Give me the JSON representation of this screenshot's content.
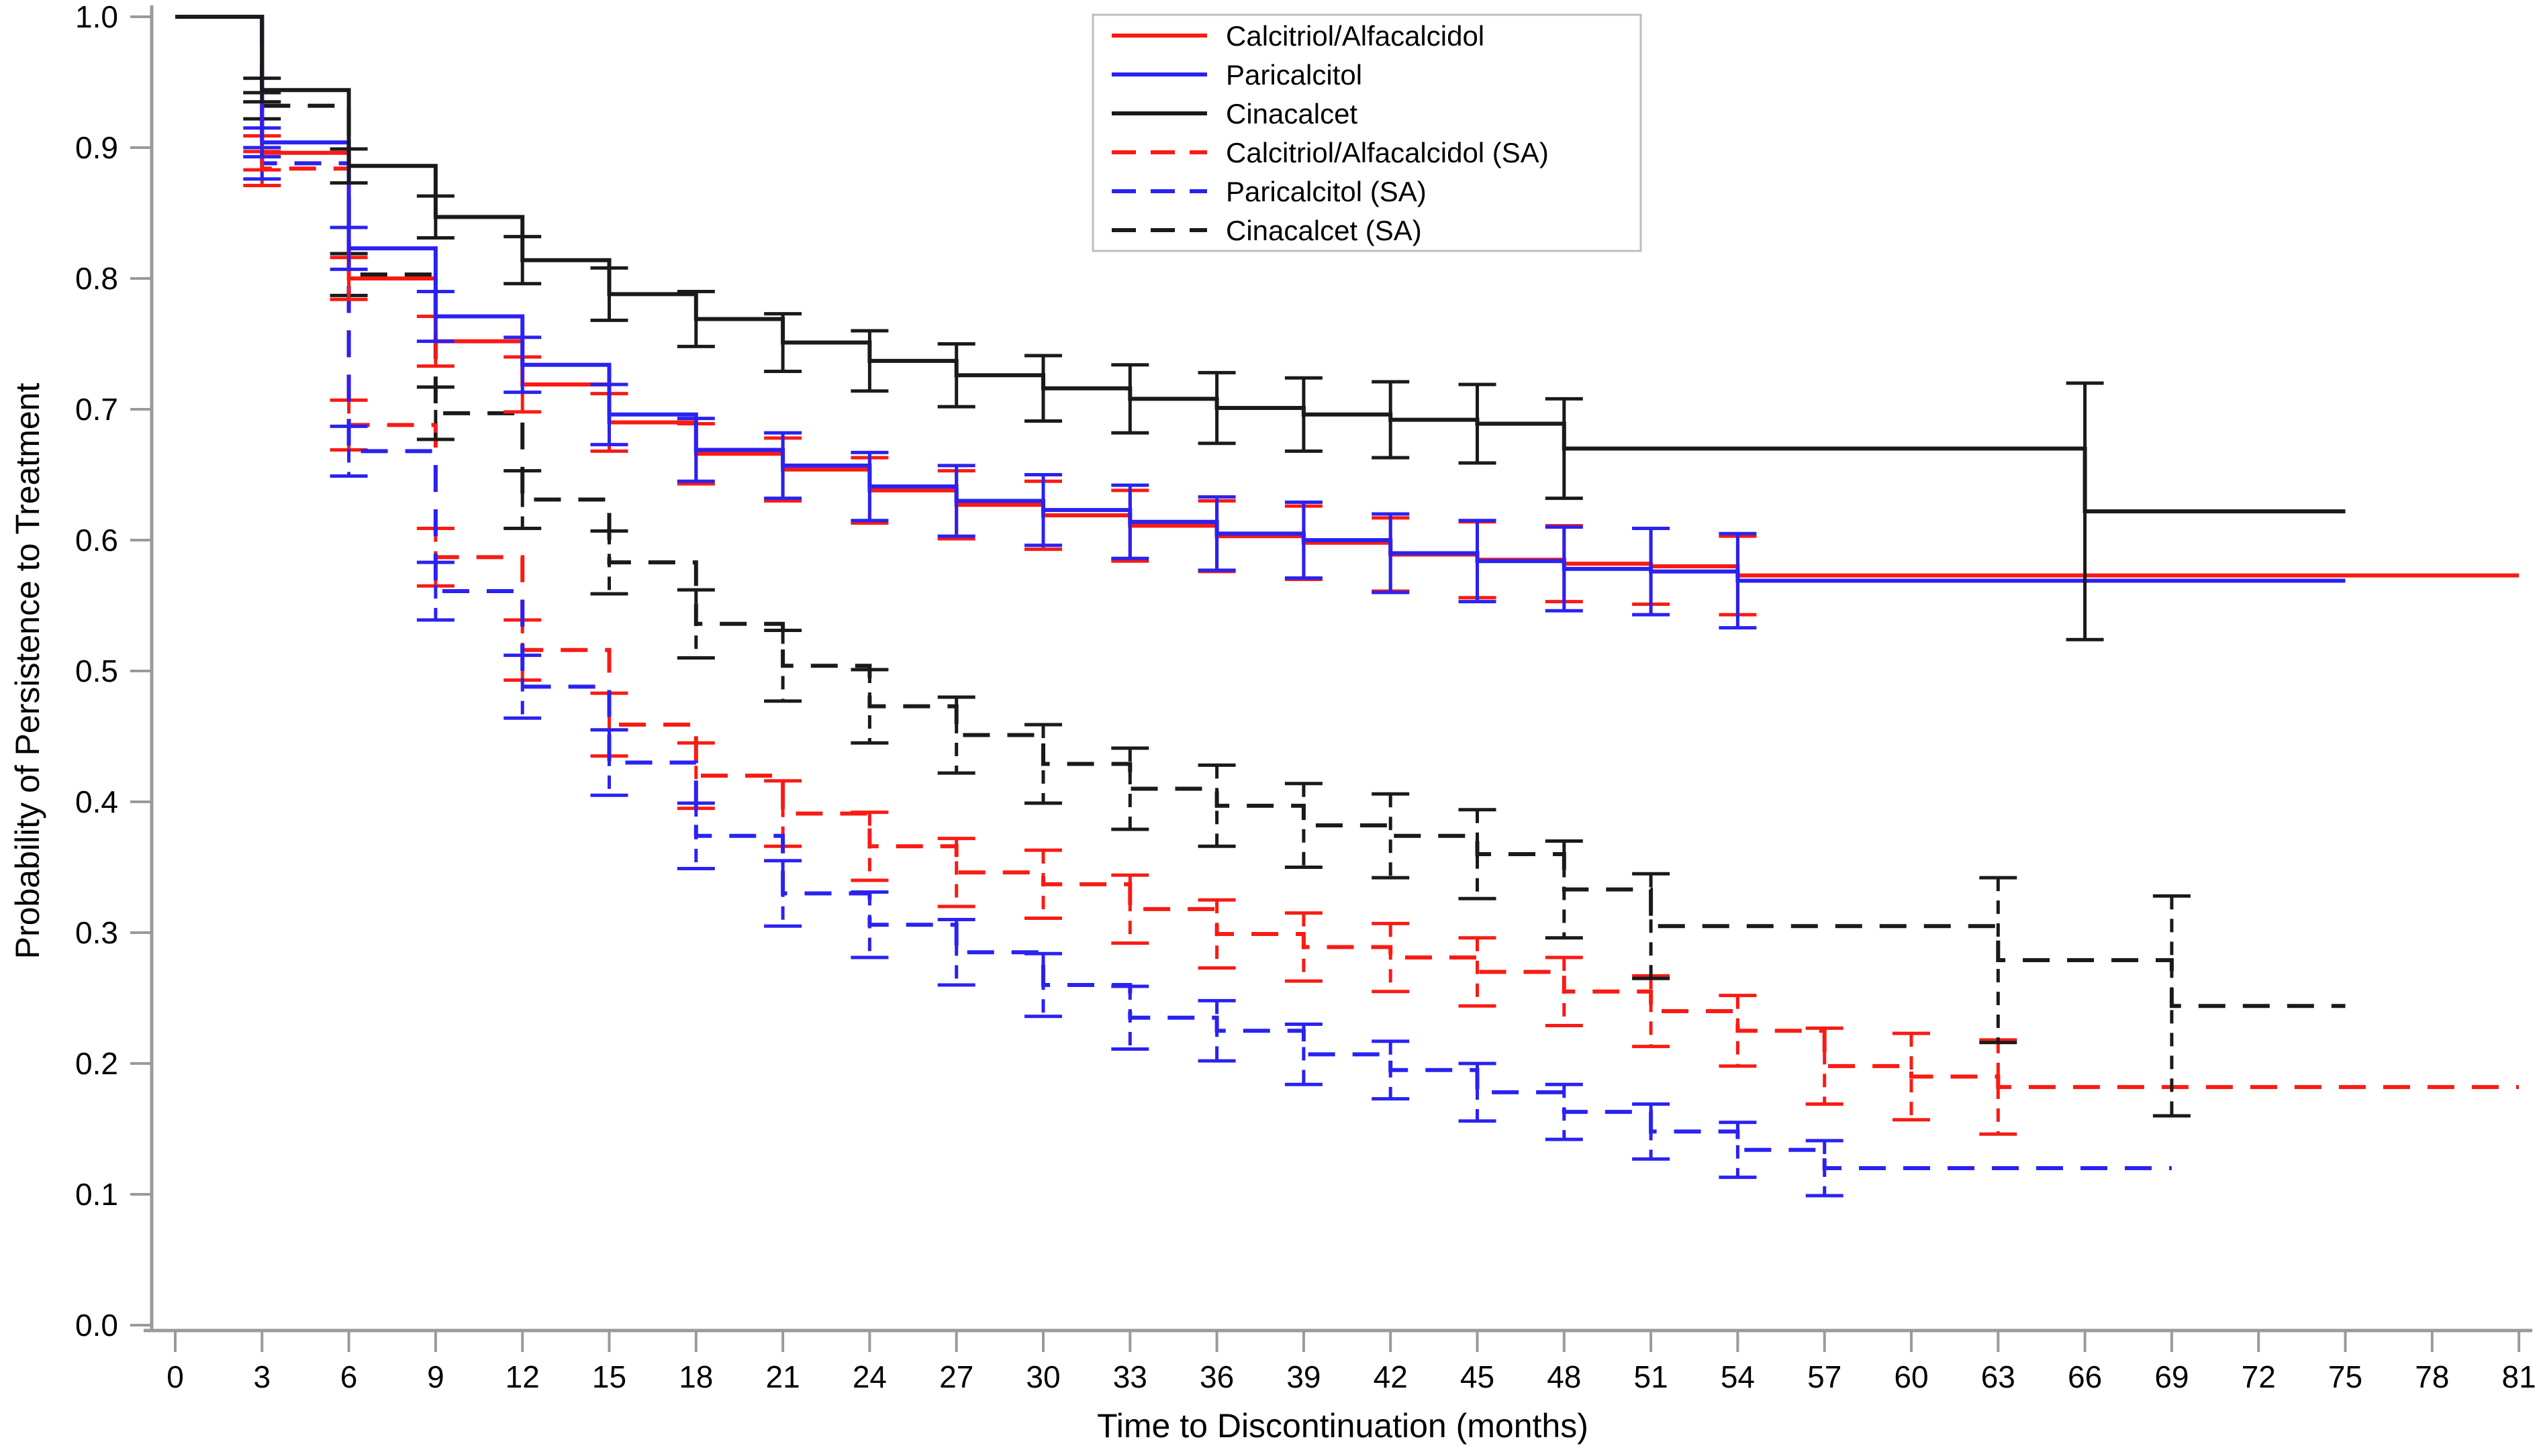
{
  "figure": {
    "kind": "kaplan-meier-survival-plot",
    "background_color": "#ffffff",
    "axis_line_color": "#9a9a9a",
    "text_color": "#000000",
    "legend_border_color": "#bdbdbd"
  },
  "chart_data": {
    "type": "line",
    "subtype": "step-post-kaplan-meier-with-error-bars",
    "title": "",
    "xlabel": "Time to Discontinuation (months)",
    "ylabel": "Probability of Persistence to Treatment",
    "xlim": [
      0,
      81
    ],
    "ylim": [
      0.0,
      1.0
    ],
    "grid": false,
    "legend_position": "top-right",
    "x_ticks": [
      0,
      3,
      6,
      9,
      12,
      15,
      18,
      21,
      24,
      27,
      30,
      33,
      36,
      39,
      42,
      45,
      48,
      51,
      54,
      57,
      60,
      63,
      66,
      69,
      72,
      75,
      78,
      81
    ],
    "x_tick_labels": [
      "0",
      "3",
      "6",
      "9",
      "12",
      "15",
      "18",
      "21",
      "24",
      "27",
      "30",
      "33",
      "36",
      "39",
      "42",
      "45",
      "48",
      "51",
      "54",
      "57",
      "60",
      "63",
      "66",
      "69",
      "72",
      "75",
      "78",
      "81"
    ],
    "y_ticks": [
      0.0,
      0.1,
      0.2,
      0.3,
      0.4,
      0.5,
      0.6,
      0.7,
      0.8,
      0.9,
      1.0
    ],
    "y_tick_labels": [
      "0.0",
      "0.1",
      "0.2",
      "0.3",
      "0.4",
      "0.5",
      "0.6",
      "0.7",
      "0.8",
      "0.9",
      "1.0"
    ],
    "series": [
      {
        "name": "Calcitriol/Alfacalcidol",
        "color": "#f81b14",
        "dash": "solid",
        "start_value": 1.0,
        "end_month": 81,
        "points": [
          {
            "m": 3,
            "v": 0.896,
            "lo": 0.883,
            "hi": 0.909
          },
          {
            "m": 6,
            "v": 0.8,
            "lo": 0.784,
            "hi": 0.816
          },
          {
            "m": 9,
            "v": 0.752,
            "lo": 0.733,
            "hi": 0.771
          },
          {
            "m": 12,
            "v": 0.719,
            "lo": 0.698,
            "hi": 0.74
          },
          {
            "m": 15,
            "v": 0.69,
            "lo": 0.668,
            "hi": 0.712
          },
          {
            "m": 18,
            "v": 0.666,
            "lo": 0.643,
            "hi": 0.689
          },
          {
            "m": 21,
            "v": 0.654,
            "lo": 0.63,
            "hi": 0.678
          },
          {
            "m": 24,
            "v": 0.638,
            "lo": 0.613,
            "hi": 0.663
          },
          {
            "m": 27,
            "v": 0.627,
            "lo": 0.601,
            "hi": 0.653
          },
          {
            "m": 30,
            "v": 0.619,
            "lo": 0.593,
            "hi": 0.645
          },
          {
            "m": 33,
            "v": 0.611,
            "lo": 0.584,
            "hi": 0.638
          },
          {
            "m": 36,
            "v": 0.603,
            "lo": 0.576,
            "hi": 0.63
          },
          {
            "m": 39,
            "v": 0.598,
            "lo": 0.57,
            "hi": 0.626
          },
          {
            "m": 42,
            "v": 0.589,
            "lo": 0.561,
            "hi": 0.617
          },
          {
            "m": 45,
            "v": 0.585,
            "lo": 0.556,
            "hi": 0.614
          },
          {
            "m": 48,
            "v": 0.582,
            "lo": 0.553,
            "hi": 0.611
          },
          {
            "m": 51,
            "v": 0.58,
            "lo": 0.551,
            "hi": 0.609
          },
          {
            "m": 54,
            "v": 0.573,
            "lo": 0.543,
            "hi": 0.603
          }
        ]
      },
      {
        "name": "Paricalcitol",
        "color": "#2a22f0",
        "dash": "solid",
        "start_value": 1.0,
        "end_month": 75,
        "points": [
          {
            "m": 3,
            "v": 0.904,
            "lo": 0.893,
            "hi": 0.915
          },
          {
            "m": 6,
            "v": 0.823,
            "lo": 0.807,
            "hi": 0.839
          },
          {
            "m": 9,
            "v": 0.771,
            "lo": 0.752,
            "hi": 0.79
          },
          {
            "m": 12,
            "v": 0.734,
            "lo": 0.713,
            "hi": 0.755
          },
          {
            "m": 15,
            "v": 0.696,
            "lo": 0.673,
            "hi": 0.719
          },
          {
            "m": 18,
            "v": 0.669,
            "lo": 0.645,
            "hi": 0.693
          },
          {
            "m": 21,
            "v": 0.657,
            "lo": 0.632,
            "hi": 0.682
          },
          {
            "m": 24,
            "v": 0.641,
            "lo": 0.615,
            "hi": 0.667
          },
          {
            "m": 27,
            "v": 0.63,
            "lo": 0.603,
            "hi": 0.657
          },
          {
            "m": 30,
            "v": 0.623,
            "lo": 0.596,
            "hi": 0.65
          },
          {
            "m": 33,
            "v": 0.614,
            "lo": 0.586,
            "hi": 0.642
          },
          {
            "m": 36,
            "v": 0.605,
            "lo": 0.577,
            "hi": 0.633
          },
          {
            "m": 39,
            "v": 0.6,
            "lo": 0.571,
            "hi": 0.629
          },
          {
            "m": 42,
            "v": 0.59,
            "lo": 0.56,
            "hi": 0.62
          },
          {
            "m": 45,
            "v": 0.584,
            "lo": 0.553,
            "hi": 0.615
          },
          {
            "m": 48,
            "v": 0.578,
            "lo": 0.546,
            "hi": 0.61
          },
          {
            "m": 51,
            "v": 0.576,
            "lo": 0.543,
            "hi": 0.609
          },
          {
            "m": 54,
            "v": 0.569,
            "lo": 0.533,
            "hi": 0.605
          }
        ]
      },
      {
        "name": "Cinacalcet",
        "color": "#1a1a1a",
        "dash": "solid",
        "start_value": 1.0,
        "end_month": 75,
        "points": [
          {
            "m": 3,
            "v": 0.944,
            "lo": 0.935,
            "hi": 0.953
          },
          {
            "m": 6,
            "v": 0.886,
            "lo": 0.873,
            "hi": 0.899
          },
          {
            "m": 9,
            "v": 0.847,
            "lo": 0.831,
            "hi": 0.863
          },
          {
            "m": 12,
            "v": 0.814,
            "lo": 0.796,
            "hi": 0.832
          },
          {
            "m": 15,
            "v": 0.788,
            "lo": 0.768,
            "hi": 0.808
          },
          {
            "m": 18,
            "v": 0.769,
            "lo": 0.748,
            "hi": 0.79
          },
          {
            "m": 21,
            "v": 0.751,
            "lo": 0.729,
            "hi": 0.773
          },
          {
            "m": 24,
            "v": 0.737,
            "lo": 0.714,
            "hi": 0.76
          },
          {
            "m": 27,
            "v": 0.726,
            "lo": 0.702,
            "hi": 0.75
          },
          {
            "m": 30,
            "v": 0.716,
            "lo": 0.691,
            "hi": 0.741
          },
          {
            "m": 33,
            "v": 0.708,
            "lo": 0.682,
            "hi": 0.734
          },
          {
            "m": 36,
            "v": 0.701,
            "lo": 0.674,
            "hi": 0.728
          },
          {
            "m": 39,
            "v": 0.696,
            "lo": 0.668,
            "hi": 0.724
          },
          {
            "m": 42,
            "v": 0.692,
            "lo": 0.663,
            "hi": 0.721
          },
          {
            "m": 45,
            "v": 0.689,
            "lo": 0.659,
            "hi": 0.719
          },
          {
            "m": 48,
            "v": 0.67,
            "lo": 0.632,
            "hi": 0.708
          },
          {
            "m": 66,
            "v": 0.622,
            "lo": 0.524,
            "hi": 0.72
          }
        ]
      },
      {
        "name": "Calcitriol/Alfacalcidol (SA)",
        "color": "#f81b14",
        "dash": "dashed",
        "start_value": 1.0,
        "end_month": 81,
        "points": [
          {
            "m": 3,
            "v": 0.884,
            "lo": 0.871,
            "hi": 0.897
          },
          {
            "m": 6,
            "v": 0.688,
            "lo": 0.669,
            "hi": 0.707
          },
          {
            "m": 9,
            "v": 0.587,
            "lo": 0.565,
            "hi": 0.609
          },
          {
            "m": 12,
            "v": 0.516,
            "lo": 0.493,
            "hi": 0.539
          },
          {
            "m": 15,
            "v": 0.459,
            "lo": 0.435,
            "hi": 0.483
          },
          {
            "m": 18,
            "v": 0.42,
            "lo": 0.395,
            "hi": 0.445
          },
          {
            "m": 21,
            "v": 0.391,
            "lo": 0.366,
            "hi": 0.416
          },
          {
            "m": 24,
            "v": 0.366,
            "lo": 0.34,
            "hi": 0.392
          },
          {
            "m": 27,
            "v": 0.346,
            "lo": 0.32,
            "hi": 0.372
          },
          {
            "m": 30,
            "v": 0.337,
            "lo": 0.311,
            "hi": 0.363
          },
          {
            "m": 33,
            "v": 0.318,
            "lo": 0.292,
            "hi": 0.344
          },
          {
            "m": 36,
            "v": 0.299,
            "lo": 0.273,
            "hi": 0.325
          },
          {
            "m": 39,
            "v": 0.289,
            "lo": 0.263,
            "hi": 0.315
          },
          {
            "m": 42,
            "v": 0.281,
            "lo": 0.255,
            "hi": 0.307
          },
          {
            "m": 45,
            "v": 0.27,
            "lo": 0.244,
            "hi": 0.296
          },
          {
            "m": 48,
            "v": 0.255,
            "lo": 0.229,
            "hi": 0.281
          },
          {
            "m": 51,
            "v": 0.24,
            "lo": 0.213,
            "hi": 0.267
          },
          {
            "m": 54,
            "v": 0.225,
            "lo": 0.198,
            "hi": 0.252
          },
          {
            "m": 57,
            "v": 0.198,
            "lo": 0.169,
            "hi": 0.227
          },
          {
            "m": 60,
            "v": 0.19,
            "lo": 0.157,
            "hi": 0.223
          },
          {
            "m": 63,
            "v": 0.182,
            "lo": 0.146,
            "hi": 0.218
          }
        ]
      },
      {
        "name": "Paricalcitol (SA)",
        "color": "#2a22f0",
        "dash": "dashed",
        "start_value": 1.0,
        "end_month": 69,
        "points": [
          {
            "m": 3,
            "v": 0.888,
            "lo": 0.876,
            "hi": 0.9
          },
          {
            "m": 6,
            "v": 0.668,
            "lo": 0.649,
            "hi": 0.687
          },
          {
            "m": 9,
            "v": 0.561,
            "lo": 0.539,
            "hi": 0.583
          },
          {
            "m": 12,
            "v": 0.488,
            "lo": 0.464,
            "hi": 0.512
          },
          {
            "m": 15,
            "v": 0.43,
            "lo": 0.405,
            "hi": 0.455
          },
          {
            "m": 18,
            "v": 0.374,
            "lo": 0.349,
            "hi": 0.399
          },
          {
            "m": 21,
            "v": 0.33,
            "lo": 0.305,
            "hi": 0.355
          },
          {
            "m": 24,
            "v": 0.306,
            "lo": 0.281,
            "hi": 0.331
          },
          {
            "m": 27,
            "v": 0.285,
            "lo": 0.26,
            "hi": 0.31
          },
          {
            "m": 30,
            "v": 0.26,
            "lo": 0.236,
            "hi": 0.284
          },
          {
            "m": 33,
            "v": 0.235,
            "lo": 0.211,
            "hi": 0.259
          },
          {
            "m": 36,
            "v": 0.225,
            "lo": 0.202,
            "hi": 0.248
          },
          {
            "m": 39,
            "v": 0.207,
            "lo": 0.184,
            "hi": 0.23
          },
          {
            "m": 42,
            "v": 0.195,
            "lo": 0.173,
            "hi": 0.217
          },
          {
            "m": 45,
            "v": 0.178,
            "lo": 0.156,
            "hi": 0.2
          },
          {
            "m": 48,
            "v": 0.163,
            "lo": 0.142,
            "hi": 0.184
          },
          {
            "m": 51,
            "v": 0.148,
            "lo": 0.127,
            "hi": 0.169
          },
          {
            "m": 54,
            "v": 0.134,
            "lo": 0.113,
            "hi": 0.155
          },
          {
            "m": 57,
            "v": 0.12,
            "lo": 0.099,
            "hi": 0.141
          }
        ]
      },
      {
        "name": "Cinacalcet (SA)",
        "color": "#1a1a1a",
        "dash": "dashed",
        "start_value": 1.0,
        "end_month": 75,
        "points": [
          {
            "m": 3,
            "v": 0.932,
            "lo": 0.922,
            "hi": 0.942
          },
          {
            "m": 6,
            "v": 0.803,
            "lo": 0.787,
            "hi": 0.819
          },
          {
            "m": 9,
            "v": 0.697,
            "lo": 0.677,
            "hi": 0.717
          },
          {
            "m": 12,
            "v": 0.631,
            "lo": 0.609,
            "hi": 0.653
          },
          {
            "m": 15,
            "v": 0.583,
            "lo": 0.559,
            "hi": 0.607
          },
          {
            "m": 18,
            "v": 0.536,
            "lo": 0.51,
            "hi": 0.562
          },
          {
            "m": 21,
            "v": 0.504,
            "lo": 0.477,
            "hi": 0.531
          },
          {
            "m": 24,
            "v": 0.473,
            "lo": 0.445,
            "hi": 0.501
          },
          {
            "m": 27,
            "v": 0.451,
            "lo": 0.422,
            "hi": 0.48
          },
          {
            "m": 30,
            "v": 0.429,
            "lo": 0.399,
            "hi": 0.459
          },
          {
            "m": 33,
            "v": 0.41,
            "lo": 0.379,
            "hi": 0.441
          },
          {
            "m": 36,
            "v": 0.397,
            "lo": 0.366,
            "hi": 0.428
          },
          {
            "m": 39,
            "v": 0.382,
            "lo": 0.35,
            "hi": 0.414
          },
          {
            "m": 42,
            "v": 0.374,
            "lo": 0.342,
            "hi": 0.406
          },
          {
            "m": 45,
            "v": 0.36,
            "lo": 0.326,
            "hi": 0.394
          },
          {
            "m": 48,
            "v": 0.333,
            "lo": 0.296,
            "hi": 0.37
          },
          {
            "m": 51,
            "v": 0.305,
            "lo": 0.265,
            "hi": 0.345
          },
          {
            "m": 63,
            "v": 0.279,
            "lo": 0.216,
            "hi": 0.342
          },
          {
            "m": 69,
            "v": 0.244,
            "lo": 0.16,
            "hi": 0.328
          }
        ]
      }
    ]
  }
}
